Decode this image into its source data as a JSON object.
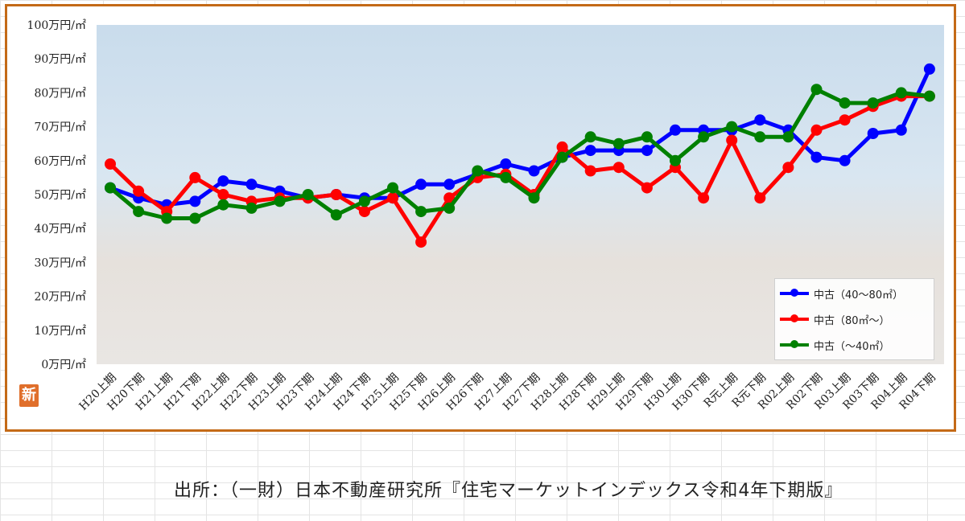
{
  "source_note": "出所：（一財）日本不動産研究所『住宅マーケットインデックス令和4年下期版』",
  "badge_label": "新",
  "chart_data": {
    "type": "line",
    "categories": [
      "H20上期",
      "H20下期",
      "H21上期",
      "H21下期",
      "H22上期",
      "H22下期",
      "H23上期",
      "H23下期",
      "H24上期",
      "H24下期",
      "H25上期",
      "H25下期",
      "H26上期",
      "H26下期",
      "H27上期",
      "H27下期",
      "H28上期",
      "H28下期",
      "H29上期",
      "H29下期",
      "H30上期",
      "H30下期",
      "R元上期",
      "R元下期",
      "R02上期",
      "R02下期",
      "R03上期",
      "R03下期",
      "R04上期",
      "R04下期"
    ],
    "y_ticks": [
      "0万円/㎡",
      "10万円/㎡",
      "20万円/㎡",
      "30万円/㎡",
      "40万円/㎡",
      "50万円/㎡",
      "60万円/㎡",
      "70万円/㎡",
      "80万円/㎡",
      "90万円/㎡",
      "100万円/㎡"
    ],
    "ylim": [
      0,
      100
    ],
    "grid": false,
    "legend_placement": "bottom-right",
    "series": [
      {
        "name": "中古（40～80㎡）",
        "color": "#0000ff",
        "values": [
          52,
          49,
          47,
          48,
          54,
          53,
          51,
          49,
          50,
          49,
          49,
          53,
          53,
          56,
          59,
          57,
          61,
          63,
          63,
          63,
          69,
          69,
          69,
          72,
          69,
          61,
          60,
          68,
          69,
          87
        ]
      },
      {
        "name": "中古（80㎡～）",
        "color": "#ff0000",
        "values": [
          59,
          51,
          45,
          55,
          50,
          48,
          49,
          49,
          50,
          45,
          49,
          36,
          49,
          55,
          56,
          50,
          64,
          57,
          58,
          52,
          58,
          49,
          66,
          49,
          58,
          69,
          72,
          76,
          79,
          79
        ]
      },
      {
        "name": "中古（～40㎡）",
        "color": "#008000",
        "values": [
          52,
          45,
          43,
          43,
          47,
          46,
          48,
          50,
          44,
          48,
          52,
          45,
          46,
          57,
          55,
          49,
          61,
          67,
          65,
          67,
          60,
          67,
          70,
          67,
          67,
          81,
          77,
          77,
          80,
          79
        ]
      }
    ]
  }
}
